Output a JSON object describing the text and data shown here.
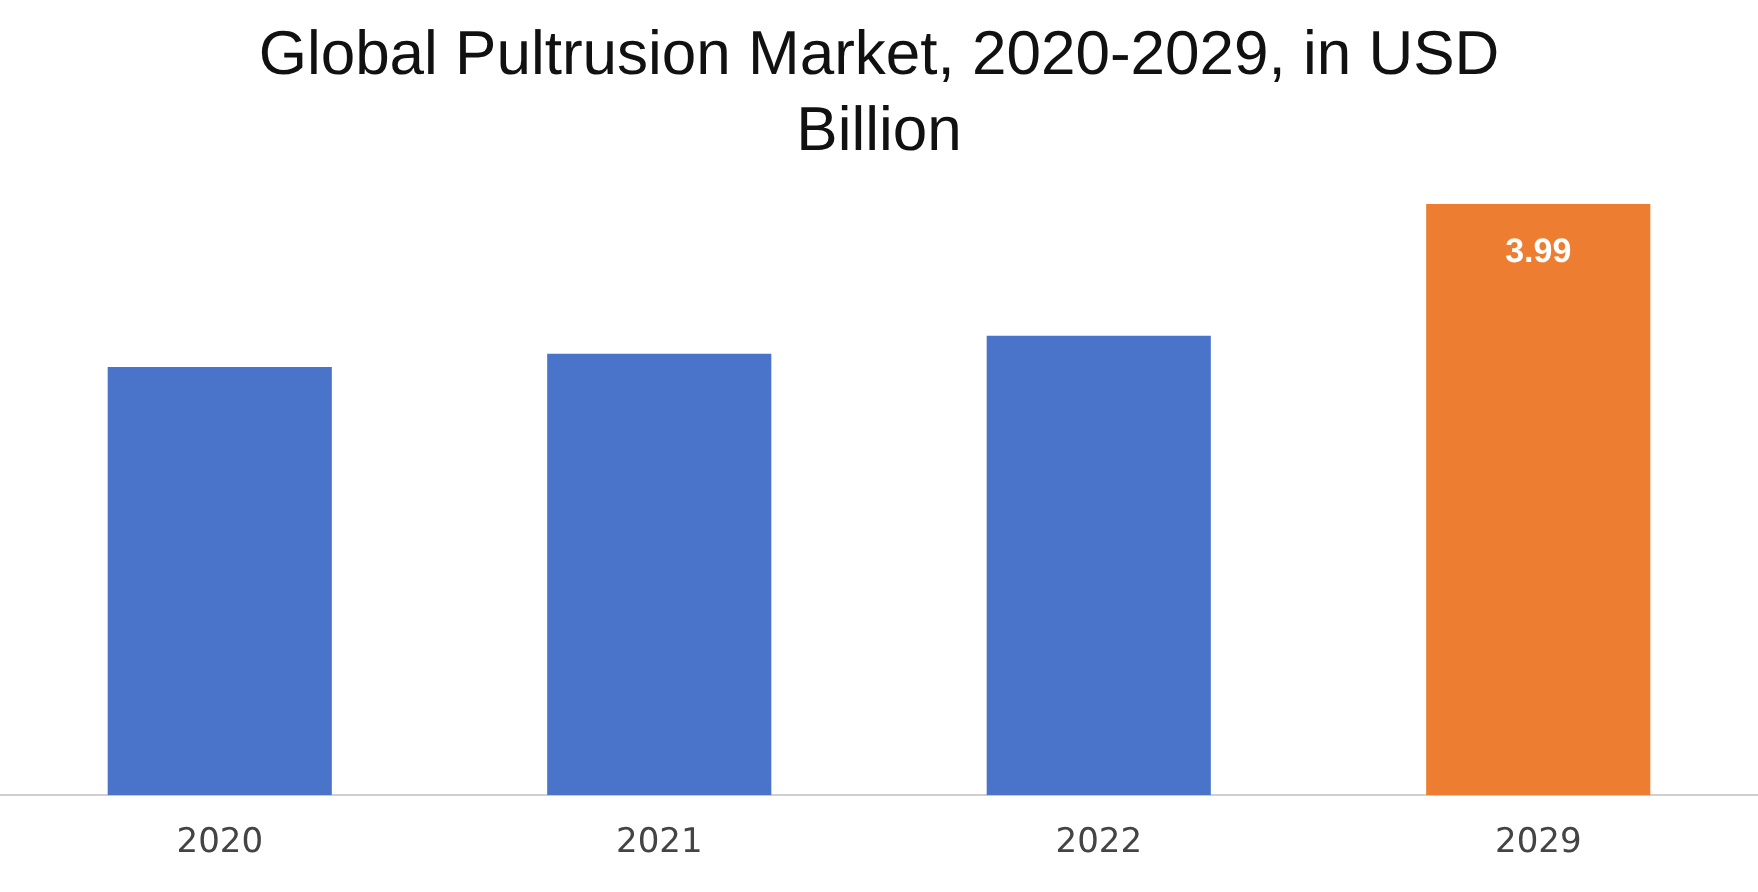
{
  "chart_data": {
    "type": "bar",
    "title": "Global Pultrusion Market, 2020-2029, in USD Billion",
    "categories": [
      "2020",
      "2021",
      "2022",
      "2029"
    ],
    "values": [
      2.89,
      2.98,
      3.1,
      3.99
    ],
    "colors": [
      "#4a74c9",
      "#4a74c9",
      "#4a74c9",
      "#ed7d31"
    ],
    "value_labels": [
      null,
      null,
      null,
      "3.99"
    ],
    "tick_labels": "x",
    "grid": false,
    "legend": false
  }
}
